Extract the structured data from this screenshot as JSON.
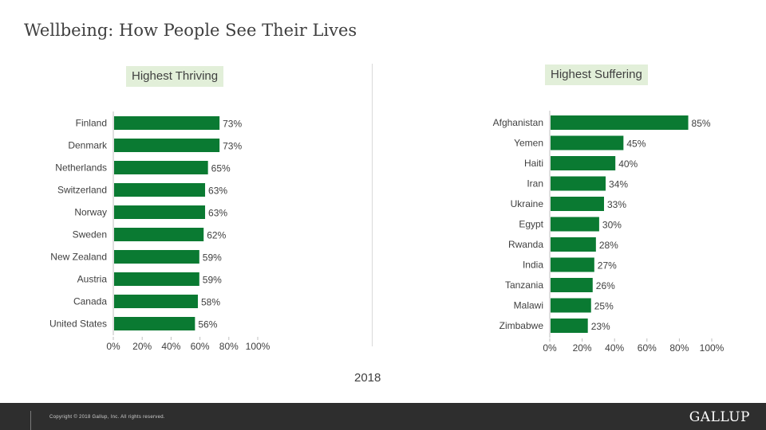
{
  "title": "Wellbeing: How People See Their Lives",
  "year": "2018",
  "footer": {
    "copyright": "Copyright © 2018 Gallup, Inc. All rights reserved.",
    "logo": "GALLUP"
  },
  "colors": {
    "bar": "#0a7a32",
    "label_bg": "#e2efd9",
    "footer_bg": "#2e2e2e"
  },
  "chart_data": [
    {
      "type": "bar",
      "orientation": "horizontal",
      "title": "Highest Thriving",
      "categories": [
        "Finland",
        "Denmark",
        "Netherlands",
        "Switzerland",
        "Norway",
        "Sweden",
        "New Zealand",
        "Austria",
        "Canada",
        "United States"
      ],
      "values": [
        73,
        73,
        65,
        63,
        63,
        62,
        59,
        59,
        58,
        56
      ],
      "value_labels": [
        "73%",
        "73%",
        "65%",
        "63%",
        "63%",
        "62%",
        "59%",
        "59%",
        "58%",
        "56%"
      ],
      "xticks": [
        "0%",
        "20%",
        "40%",
        "60%",
        "80%",
        "100%"
      ],
      "xlim": [
        0,
        100
      ],
      "grid": false
    },
    {
      "type": "bar",
      "orientation": "horizontal",
      "title": "Highest Suffering",
      "categories": [
        "Afghanistan",
        "Yemen",
        "Haiti",
        "Iran",
        "Ukraine",
        "Egypt",
        "Rwanda",
        "India",
        "Tanzania",
        "Malawi",
        "Zimbabwe"
      ],
      "values": [
        85,
        45,
        40,
        34,
        33,
        30,
        28,
        27,
        26,
        25,
        23
      ],
      "value_labels": [
        "85%",
        "45%",
        "40%",
        "34%",
        "33%",
        "30%",
        "28%",
        "27%",
        "26%",
        "25%",
        "23%"
      ],
      "xticks": [
        "0%",
        "20%",
        "40%",
        "60%",
        "80%",
        "100%"
      ],
      "xlim": [
        0,
        100
      ],
      "grid": false
    }
  ]
}
